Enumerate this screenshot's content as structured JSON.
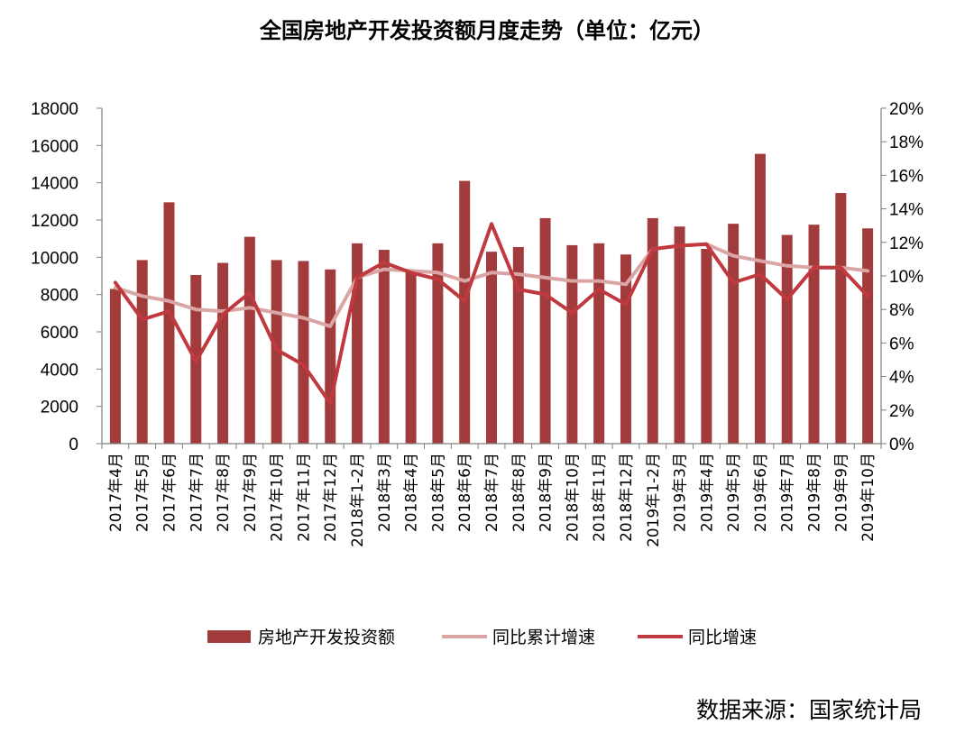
{
  "title": "全国房地产开发投资额月度走势（单位：亿元）",
  "source": "数据来源：国家统计局",
  "colors": {
    "bar": "#A23B3B",
    "cumulative_line": "#D9A5A5",
    "yoy_line": "#C0393F",
    "axis": "#7f7f7f"
  },
  "chart_data": {
    "type": "bar",
    "title": "全国房地产开发投资额月度走势（单位：亿元）",
    "categories": [
      "2017年4月",
      "2017年5月",
      "2017年6月",
      "2017年7月",
      "2017年8月",
      "2017年9月",
      "2017年10月",
      "2017年11月",
      "2017年12月",
      "2018年1-2月",
      "2018年3月",
      "2018年4月",
      "2018年5月",
      "2018年6月",
      "2018年7月",
      "2018年8月",
      "2018年9月",
      "2018年10月",
      "2018年11月",
      "2018年12月",
      "2019年1-2月",
      "2019年3月",
      "2019年4月",
      "2019年5月",
      "2019年6月",
      "2019年7月",
      "2019年8月",
      "2019年9月",
      "2019年10月"
    ],
    "yticks_left": [
      "0",
      "2000",
      "4000",
      "6000",
      "8000",
      "10000",
      "12000",
      "14000",
      "16000",
      "18000"
    ],
    "yticks_right": [
      "0%",
      "2%",
      "4%",
      "6%",
      "8%",
      "10%",
      "12%",
      "14%",
      "16%",
      "18%",
      "20%"
    ],
    "ylim_left": [
      0,
      18000
    ],
    "ylim_right": [
      0,
      20
    ],
    "legend_position": "bottom",
    "series": [
      {
        "name": "房地产开发投资额",
        "type": "bar",
        "axis": "left",
        "values": [
          8300,
          9850,
          12950,
          9050,
          9700,
          11100,
          9850,
          9800,
          9350,
          10750,
          10400,
          9300,
          10750,
          14100,
          10300,
          10550,
          12100,
          10650,
          10750,
          10150,
          12100,
          11650,
          10450,
          11800,
          15550,
          11200,
          11750,
          13450,
          11550
        ]
      },
      {
        "name": "同比累计增速",
        "type": "line",
        "axis": "right",
        "values": [
          9.3,
          8.8,
          8.5,
          8.0,
          7.9,
          8.1,
          7.8,
          7.5,
          7.0,
          9.9,
          10.4,
          10.3,
          10.2,
          9.7,
          10.2,
          10.1,
          9.9,
          9.7,
          9.7,
          9.5,
          11.6,
          11.8,
          11.9,
          11.2,
          10.9,
          10.6,
          10.5,
          10.5,
          10.3
        ]
      },
      {
        "name": "同比增速",
        "type": "line",
        "axis": "right",
        "values": [
          9.6,
          7.4,
          7.9,
          4.9,
          7.7,
          9.0,
          5.6,
          4.7,
          2.4,
          9.9,
          10.8,
          10.2,
          9.8,
          8.5,
          13.1,
          9.2,
          8.9,
          7.8,
          9.2,
          8.3,
          11.6,
          11.8,
          11.9,
          9.6,
          10.1,
          8.6,
          10.5,
          10.5,
          8.8
        ]
      }
    ]
  }
}
